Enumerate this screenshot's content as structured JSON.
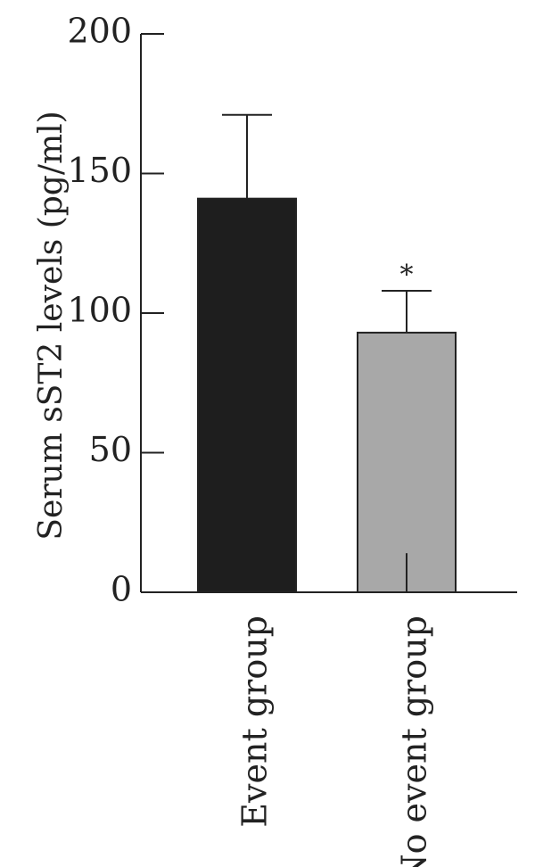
{
  "chart_data": {
    "type": "bar",
    "title": "",
    "xlabel": "",
    "ylabel": "Serum sST2 levels (pg/ml)",
    "ylim": [
      0,
      200
    ],
    "yticks": [
      0,
      50,
      100,
      150,
      200
    ],
    "grid": false,
    "categories": [
      "Event group",
      "No event group"
    ],
    "values": [
      141,
      93
    ],
    "error": [
      30,
      15
    ],
    "colors": [
      "#1e1e1e",
      "#a8a8a8"
    ],
    "annotations": [
      {
        "category": "No event group",
        "text": "*"
      }
    ]
  }
}
